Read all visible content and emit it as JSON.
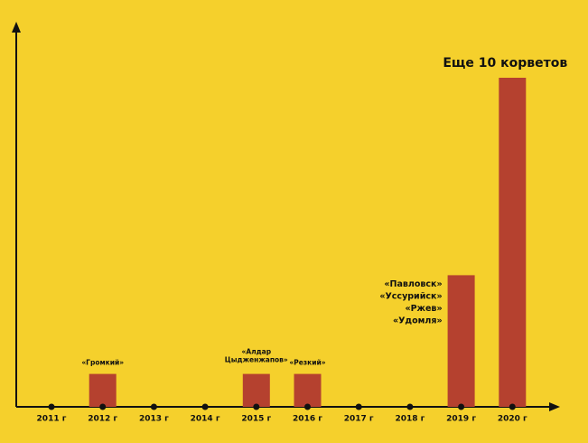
{
  "chart_data": {
    "type": "bar",
    "categories": [
      "2011 г",
      "2012 г",
      "2013 г",
      "2014 г",
      "2015 г",
      "2016 г",
      "2017 г",
      "2018 г",
      "2019 г",
      "2020 г"
    ],
    "values": [
      0,
      1,
      0,
      0,
      1,
      1,
      0,
      0,
      4,
      10
    ],
    "bar_labels": [
      null,
      "«Громкий»",
      null,
      null,
      [
        "«Алдар",
        "Цыдженжапов»"
      ],
      "«Резкий»",
      null,
      null,
      [
        "«Павловск»",
        "«Уссурийск»",
        "«Ржев»",
        "«Удомля»"
      ],
      "Еще 10 корветов"
    ],
    "color": "#b5412f",
    "ylim": [
      0,
      10
    ]
  }
}
